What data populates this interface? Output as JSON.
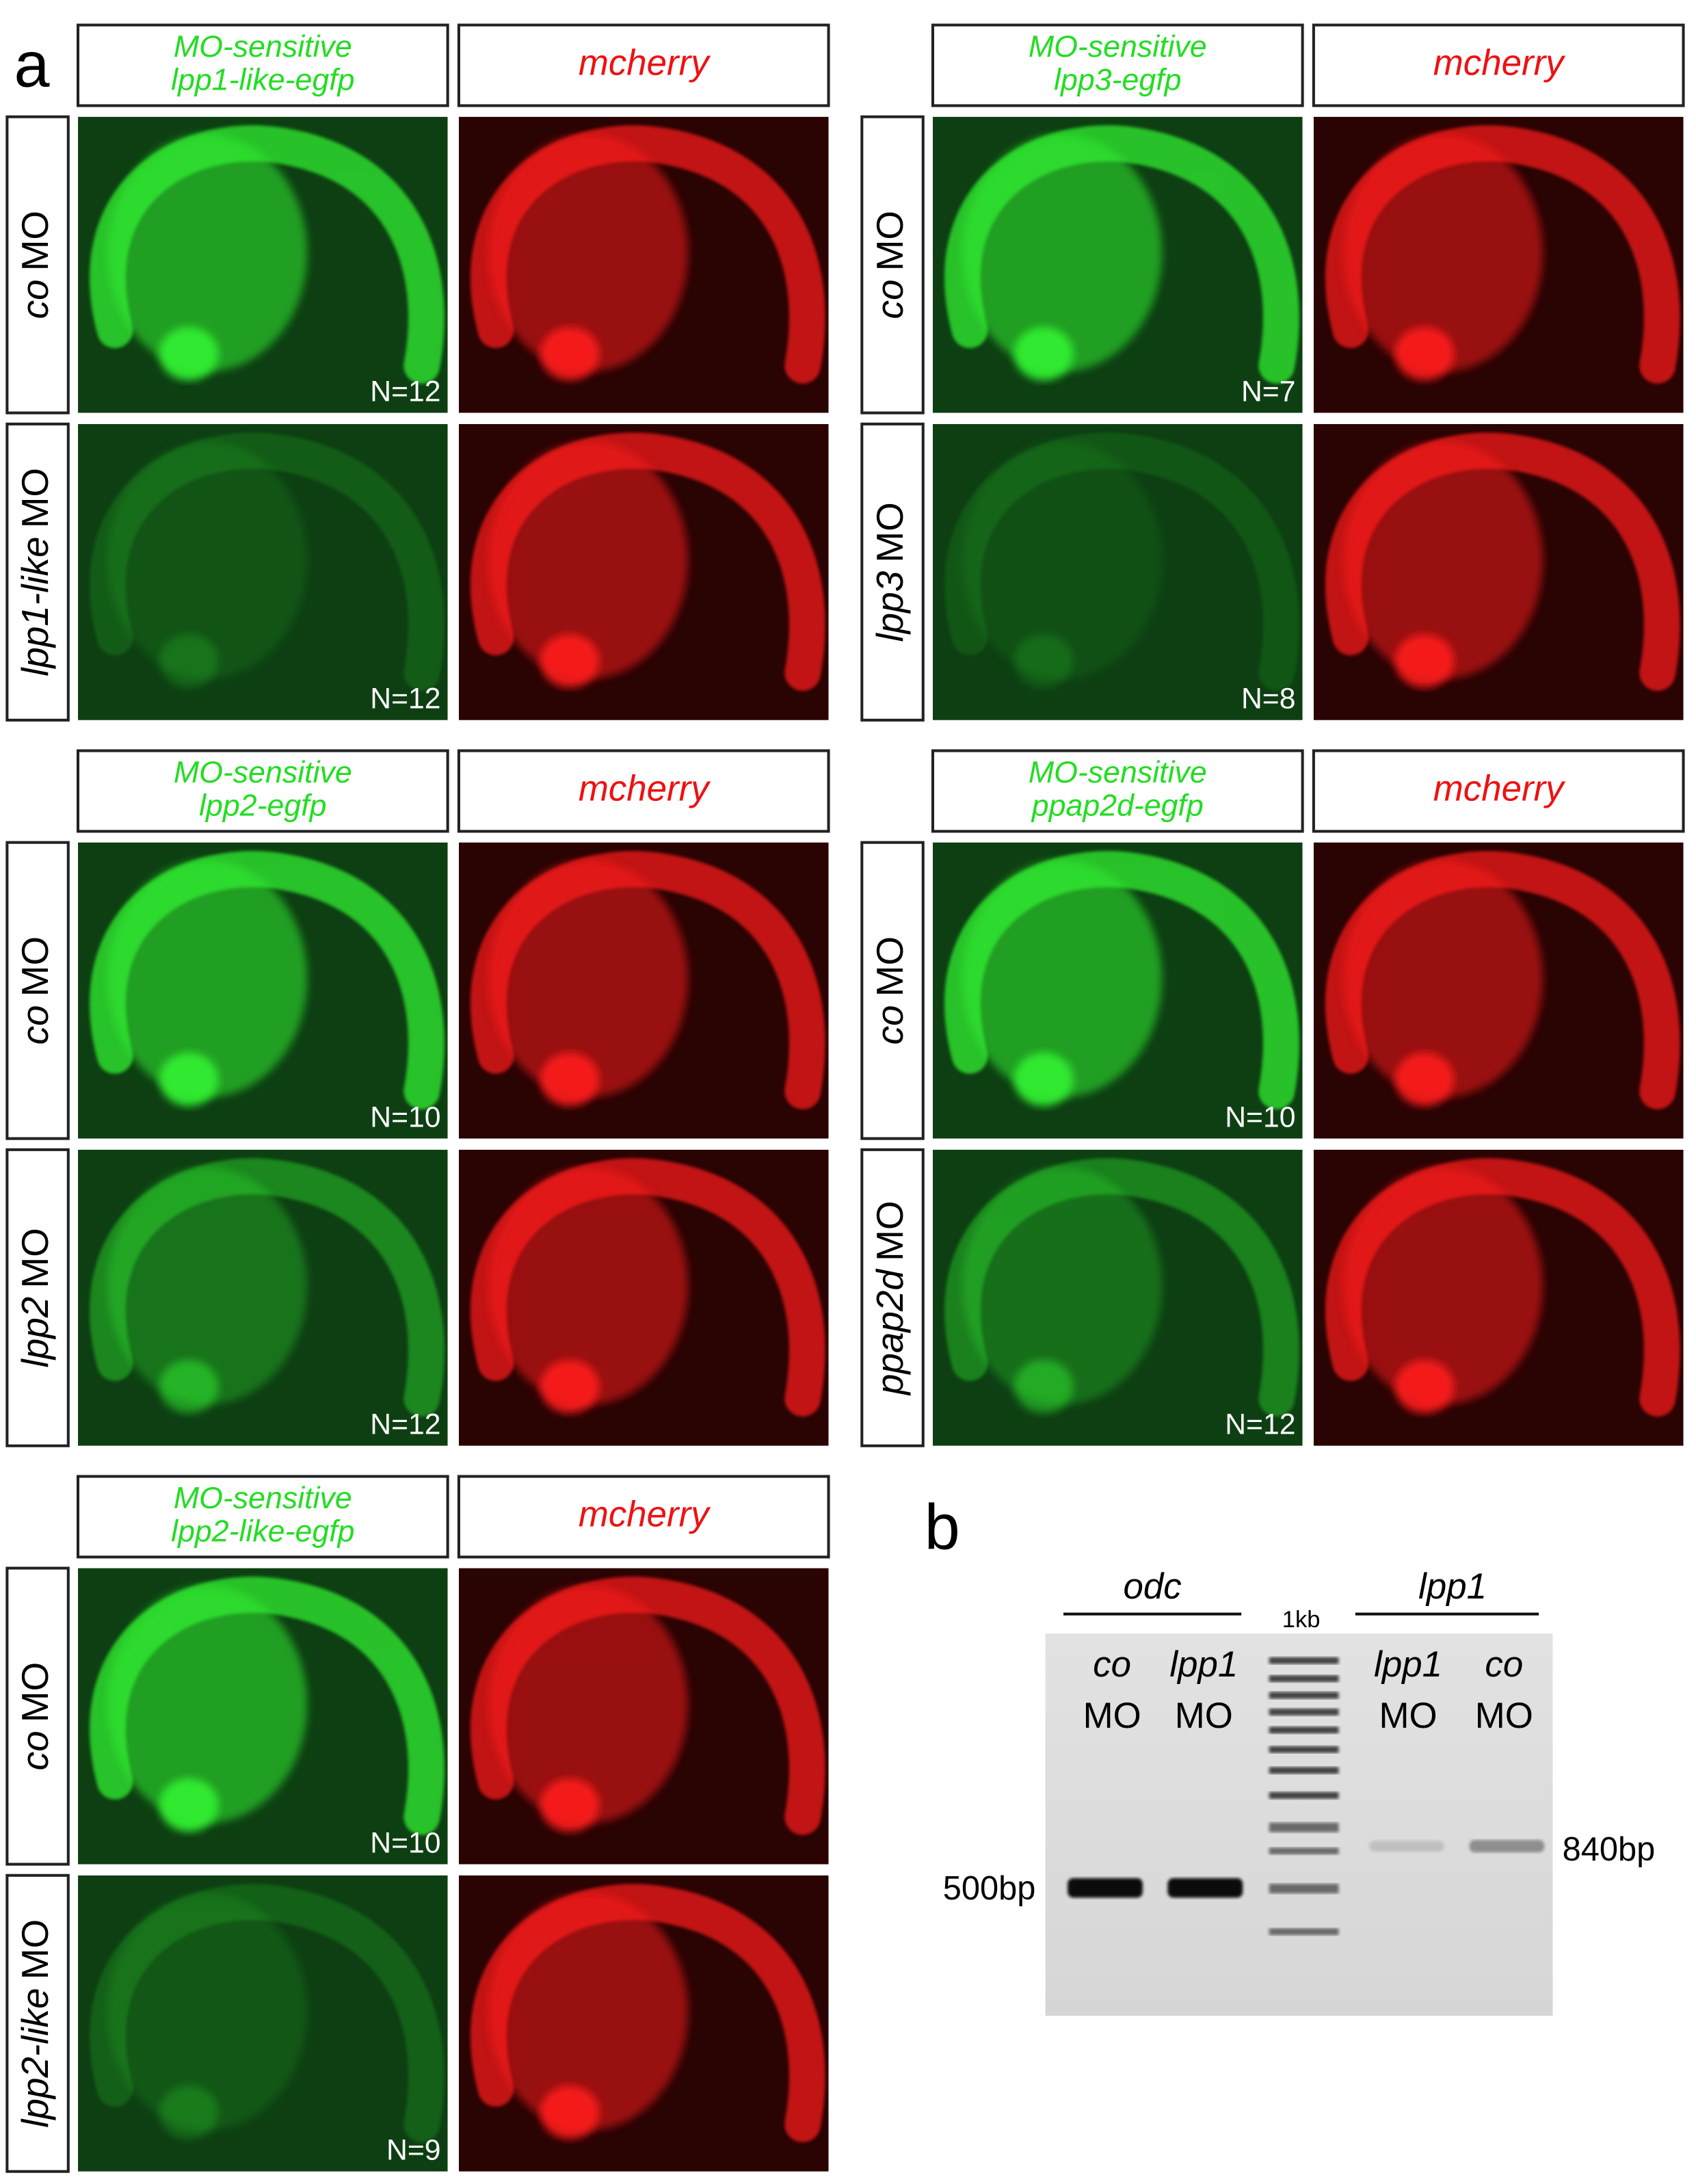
{
  "panel_a": {
    "label": "a",
    "groups": [
      {
        "egfp_header": [
          "MO-sensitive",
          "lpp1-like-egfp"
        ],
        "mcherry_header": "mcherry",
        "rows": [
          {
            "morpholino": "co",
            "suffix": "MO",
            "n": "N=12"
          },
          {
            "morpholino": "lpp1-like",
            "suffix": "MO",
            "n": "N=12"
          }
        ]
      },
      {
        "egfp_header": [
          "MO-sensitive",
          "lpp3-egfp"
        ],
        "mcherry_header": "mcherry",
        "rows": [
          {
            "morpholino": "co",
            "suffix": "MO",
            "n": "N=7"
          },
          {
            "morpholino": "lpp3",
            "suffix": "MO",
            "n": "N=8"
          }
        ]
      },
      {
        "egfp_header": [
          "MO-sensitive",
          "lpp2-egfp"
        ],
        "mcherry_header": "mcherry",
        "rows": [
          {
            "morpholino": "co",
            "suffix": "MO",
            "n": "N=10"
          },
          {
            "morpholino": "lpp2",
            "suffix": "MO",
            "n": "N=12"
          }
        ]
      },
      {
        "egfp_header": [
          "MO-sensitive",
          "ppap2d-egfp"
        ],
        "mcherry_header": "mcherry",
        "rows": [
          {
            "morpholino": "co",
            "suffix": "MO",
            "n": "N=10"
          },
          {
            "morpholino": "ppap2d",
            "suffix": "MO",
            "n": "N=12"
          }
        ]
      },
      {
        "egfp_header": [
          "MO-sensitive",
          "lpp2-like-egfp"
        ],
        "mcherry_header": "mcherry",
        "rows": [
          {
            "morpholino": "co",
            "suffix": "MO",
            "n": "N=10"
          },
          {
            "morpholino": "lpp2-like",
            "suffix": "MO",
            "n": "N=9"
          }
        ]
      }
    ]
  },
  "panel_b": {
    "label": "b",
    "ladder": "1kb",
    "markers": [
      "500bp",
      "840bp"
    ],
    "groups": [
      {
        "gene": "odc",
        "lanes": [
          [
            "co",
            "MO"
          ],
          [
            "lpp1",
            "MO"
          ]
        ]
      },
      {
        "gene": "lpp1",
        "lanes": [
          [
            "lpp1",
            "MO"
          ],
          [
            "co",
            "MO"
          ]
        ]
      }
    ]
  }
}
